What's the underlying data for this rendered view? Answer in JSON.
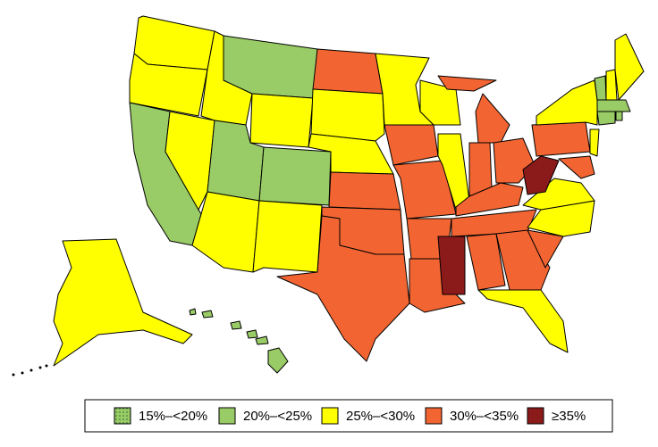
{
  "legend": {
    "items": [
      {
        "label": "15%–<20%",
        "color": "#99cc66"
      },
      {
        "label": "20%–<25%",
        "color": "#99cc66"
      },
      {
        "label": "25%–<30%",
        "color": "#ffff00"
      },
      {
        "label": "30%–<35%",
        "color": "#f26532"
      },
      {
        "label": "≥35%",
        "color": "#8b1a1a"
      }
    ]
  }
}
